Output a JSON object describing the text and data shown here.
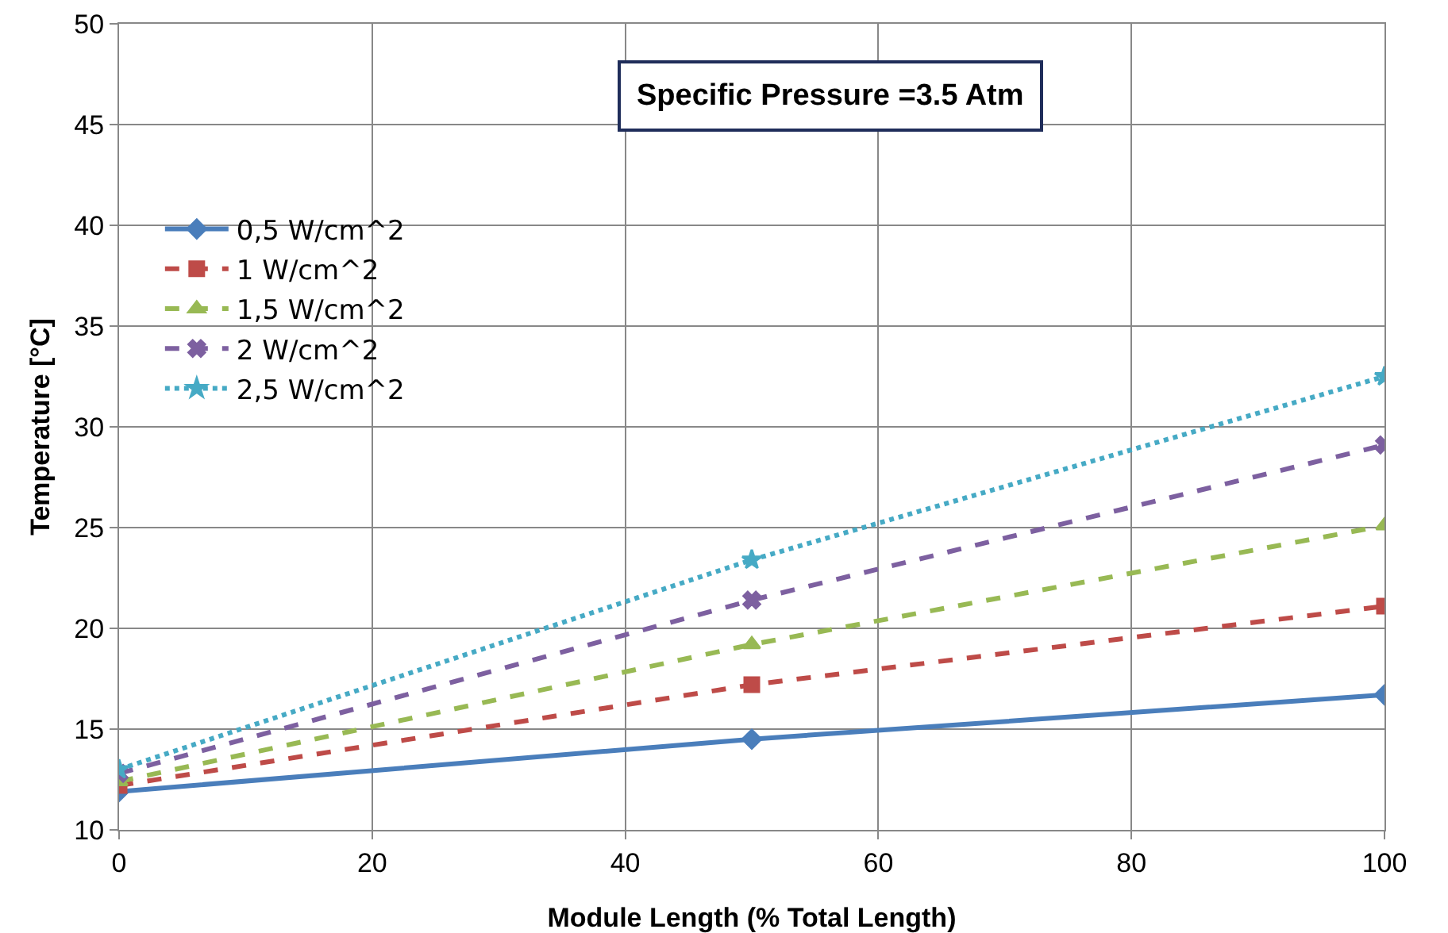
{
  "chart_data": {
    "type": "line",
    "xlabel": "Module Length (% Total Length) ",
    "ylabel": "Temperature [°C] ",
    "annotations": [
      "Specific Pressure =3.5 Atm"
    ],
    "x": [
      0,
      50,
      100
    ],
    "series": [
      {
        "name": "0,5 W/cm^2 ",
        "color": "#4a7ebb",
        "values": [
          11.9,
          14.5,
          16.7
        ],
        "marker": "diamond",
        "line_style": "solid"
      },
      {
        "name": "1 W/cm^2 ",
        "color": "#be4b48",
        "values": [
          12.2,
          17.2,
          21.1
        ],
        "marker": "square",
        "line_style": "dashed"
      },
      {
        "name": "1,5 W/cm^2 ",
        "color": "#98b954",
        "values": [
          12.4,
          19.2,
          25.1
        ],
        "marker": "triangle",
        "line_style": "dashed"
      },
      {
        "name": "2 W/cm^2 ",
        "color": "#7d60a0",
        "values": [
          12.8,
          21.4,
          29.1
        ],
        "marker": "cross",
        "line_style": "dashed"
      },
      {
        "name": "2,5 W/cm^2 ",
        "color": "#46aac5",
        "values": [
          13.0,
          23.4,
          32.5
        ],
        "marker": "star",
        "line_style": "dotted"
      }
    ],
    "xlim": [
      0,
      100
    ],
    "xticks": [
      0,
      20,
      40,
      60,
      80,
      100
    ],
    "ylim": [
      10,
      50
    ],
    "yticks": [
      10,
      15,
      20,
      25,
      30,
      35,
      40,
      45,
      50
    ],
    "grid": true,
    "legend": "top left"
  }
}
